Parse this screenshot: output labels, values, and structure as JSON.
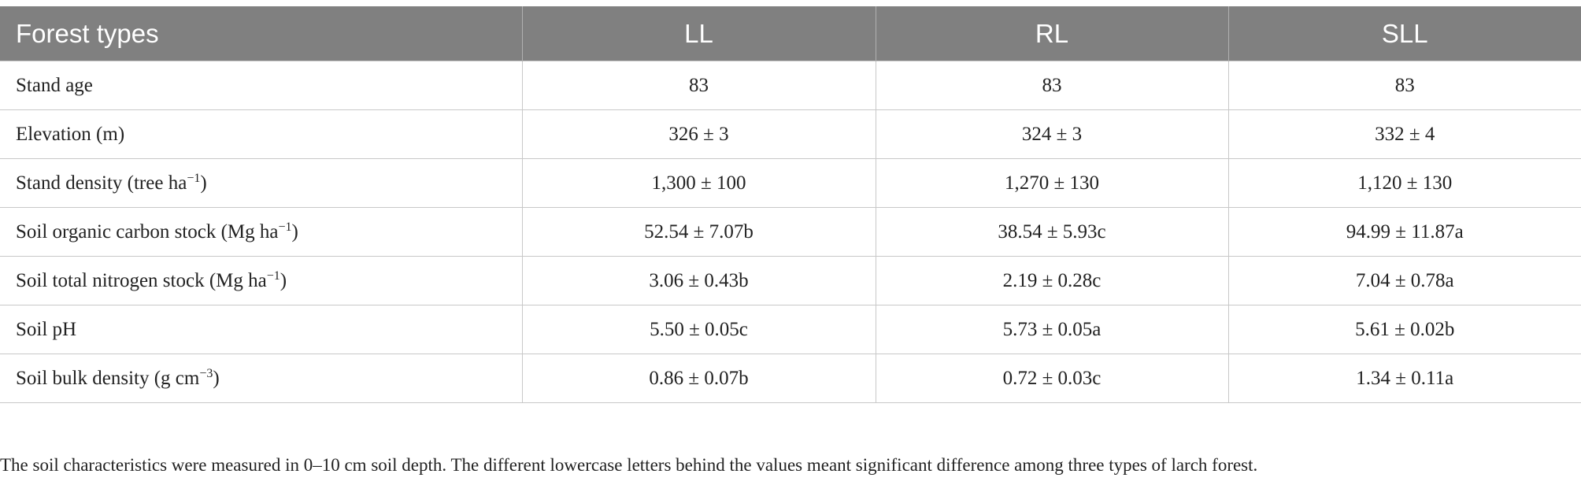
{
  "table": {
    "header": [
      "Forest types",
      "LL",
      "RL",
      "SLL"
    ],
    "rows": [
      {
        "label": "Stand age",
        "cells": [
          "83",
          "83",
          "83"
        ]
      },
      {
        "label": "Elevation (m)",
        "cells": [
          "326 ± 3",
          "324 ± 3",
          "332 ± 4"
        ]
      },
      {
        "label": [
          "Stand density (tree ha",
          "−1",
          ")"
        ],
        "cells": [
          "1,300 ± 100",
          "1,270 ± 130",
          "1,120 ± 130"
        ]
      },
      {
        "label": [
          "Soil organic carbon stock (Mg ha",
          "−1",
          ")"
        ],
        "cells": [
          "52.54 ± 7.07b",
          "38.54 ± 5.93c",
          "94.99 ± 11.87a"
        ]
      },
      {
        "label": [
          "Soil total nitrogen stock (Mg ha",
          "−1",
          ")"
        ],
        "cells": [
          "3.06 ± 0.43b",
          "2.19 ± 0.28c",
          "7.04 ± 0.78a"
        ]
      },
      {
        "label": "Soil pH",
        "cells": [
          "5.50 ± 0.05c",
          "5.73 ± 0.05a",
          "5.61 ± 0.02b"
        ]
      },
      {
        "label": [
          "Soil bulk density (g cm",
          "−3",
          ")"
        ],
        "cells": [
          "0.86 ± 0.07b",
          "0.72 ± 0.03c",
          "1.34 ± 0.11a"
        ]
      }
    ]
  },
  "footnote": "The soil characteristics were measured in 0–10 cm soil depth. The different lowercase letters behind the values meant significant difference among three types of larch forest."
}
